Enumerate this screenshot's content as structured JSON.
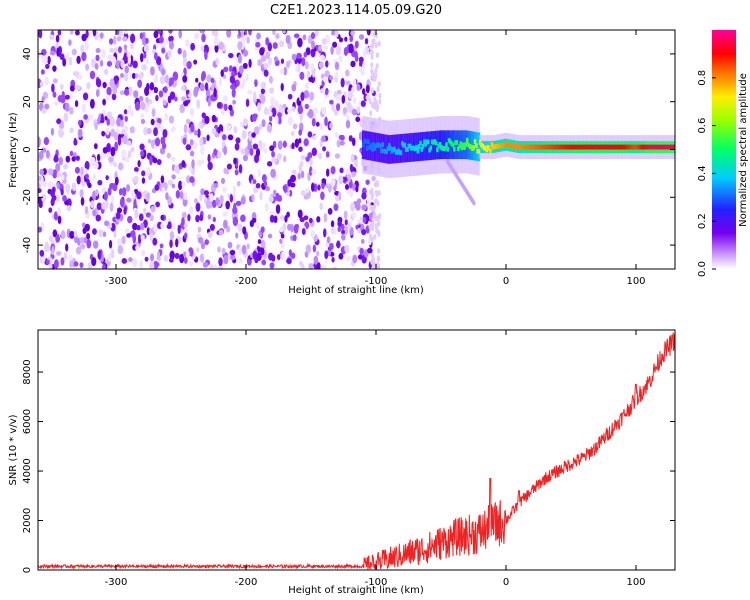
{
  "title": "C2E1.2023.114.05.09.G20",
  "chart_data": [
    {
      "type": "heatmap",
      "xlabel": "Height of straight line (km)",
      "ylabel": "Frequency (Hz)",
      "xlim": [
        -360,
        130
      ],
      "ylim": [
        -50,
        50
      ],
      "x_ticks": [
        -300,
        -200,
        -100,
        0,
        100
      ],
      "y_ticks": [
        -40,
        -20,
        0,
        20,
        40
      ],
      "x_tick_labels": [
        "-300",
        "-200",
        "-100",
        "0",
        "100"
      ],
      "y_tick_labels": [
        "-40",
        "-20",
        "0",
        "20",
        "40"
      ],
      "noise_region_x": [
        -360,
        -100
      ],
      "signal_ridge": {
        "x": [
          -110,
          -90,
          -70,
          -50,
          -30,
          -20,
          -10,
          0,
          10,
          30,
          50,
          70,
          90,
          100,
          110,
          130
        ],
        "frequency": [
          2,
          0,
          1,
          2,
          2,
          1,
          1,
          2,
          1,
          1,
          1,
          1,
          1,
          1,
          1,
          1
        ],
        "amplitude": [
          0.3,
          0.35,
          0.4,
          0.45,
          0.55,
          0.7,
          0.75,
          0.8,
          0.8,
          0.85,
          0.9,
          0.92,
          0.9,
          0.85,
          0.95,
          0.95
        ]
      },
      "colorbar": {
        "label": "Normalized spectral amplitude",
        "range": [
          0,
          1
        ],
        "ticks": [
          0.0,
          0.2,
          0.4,
          0.6,
          0.8
        ],
        "tick_labels": [
          "0.0",
          "0.2",
          "0.4",
          "0.6",
          "0.8"
        ]
      },
      "grid": false
    },
    {
      "type": "line",
      "xlabel": "Height of straight line (km)",
      "ylabel": "SNR (10 * v/v)",
      "xlim": [
        -360,
        130
      ],
      "ylim": [
        0,
        9700
      ],
      "x_ticks": [
        -300,
        -200,
        -100,
        0,
        100
      ],
      "y_ticks": [
        0,
        2000,
        4000,
        6000,
        8000
      ],
      "x_tick_labels": [
        "-300",
        "-200",
        "-100",
        "0",
        "100"
      ],
      "y_tick_labels": [
        "0",
        "2000",
        "4000",
        "6000",
        "8000"
      ],
      "series": [
        {
          "color": "#ee2222",
          "x": [
            -360,
            -110,
            -100,
            -80,
            -60,
            -40,
            -20,
            -10,
            0,
            10,
            20,
            30,
            40,
            50,
            60,
            70,
            80,
            90,
            100,
            110,
            120,
            130
          ],
          "y": [
            150,
            150,
            300,
            600,
            900,
            1300,
            1500,
            1800,
            2000,
            2700,
            3200,
            3700,
            4000,
            4300,
            4550,
            5000,
            5600,
            6200,
            6900,
            7600,
            8700,
            9300
          ]
        }
      ],
      "spikes": [
        {
          "x": -12,
          "y": 3700
        },
        {
          "x": 10,
          "y": 3200
        },
        {
          "x": 100,
          "y": 7500
        }
      ],
      "grid": false
    }
  ]
}
